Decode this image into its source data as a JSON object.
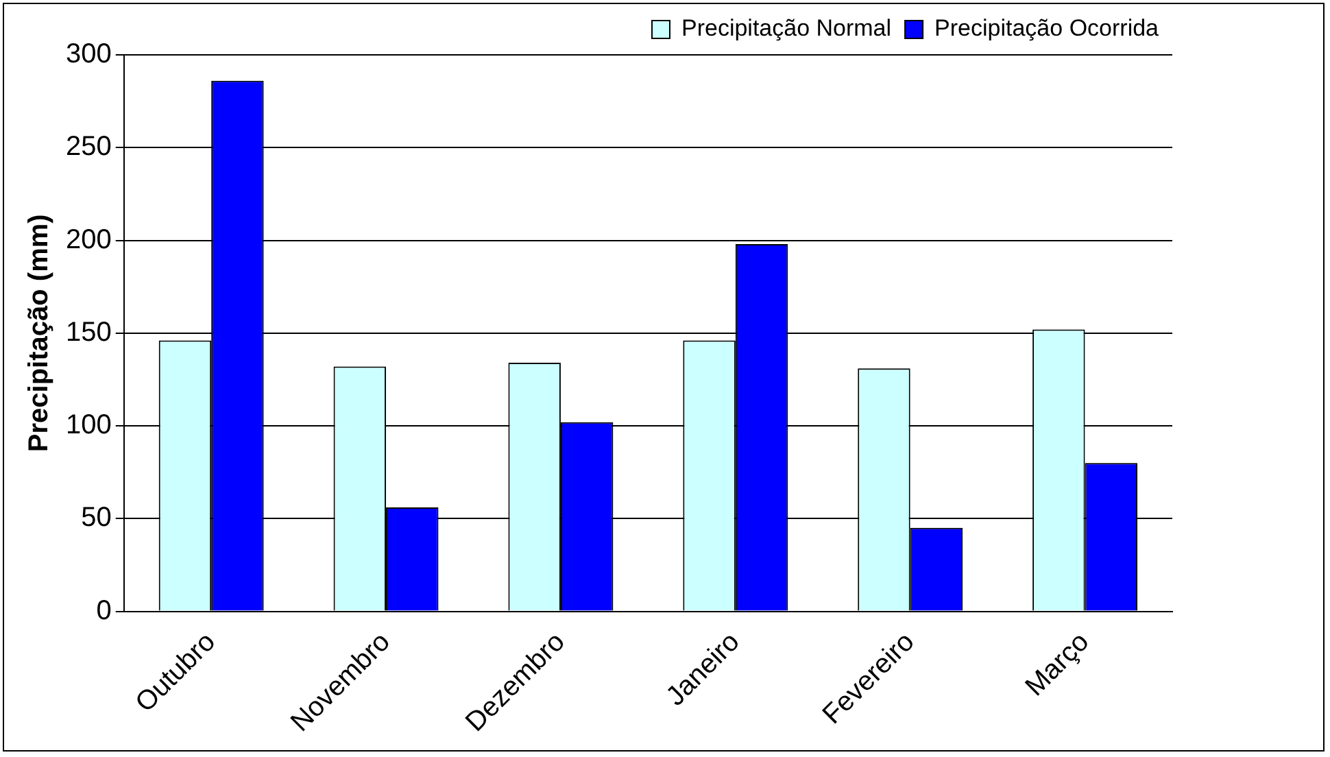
{
  "chart_data": {
    "type": "bar",
    "ylabel": "Precipitação (mm)",
    "categories": [
      "Outubro",
      "Novembro",
      "Dezembro",
      "Janeiro",
      "Fevereiro",
      "Março"
    ],
    "series": [
      {
        "name": "Precipitação Normal",
        "color": "#ccffff",
        "values": [
          146,
          132,
          134,
          146,
          131,
          152
        ]
      },
      {
        "name": "Precipitação Ocorrida",
        "color": "#0000ff",
        "values": [
          286,
          56,
          102,
          198,
          45,
          80
        ]
      }
    ],
    "ylim": [
      0,
      300
    ],
    "yticks": [
      0,
      50,
      100,
      150,
      200,
      250,
      300
    ],
    "grid": "y",
    "legend": "top right"
  }
}
